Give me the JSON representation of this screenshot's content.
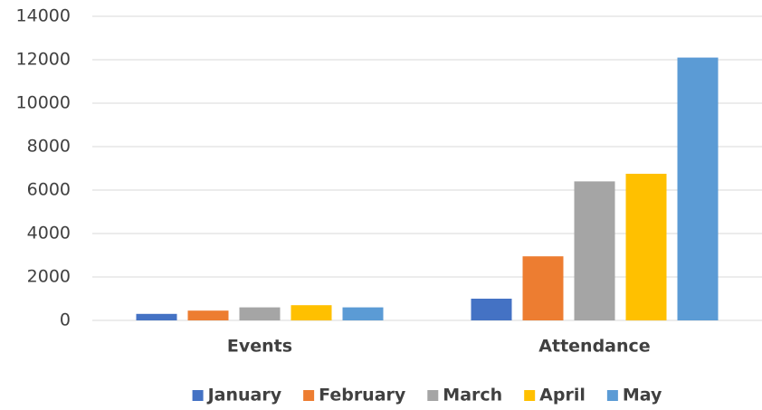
{
  "chart_data": {
    "type": "bar",
    "categories": [
      "Events",
      "Attendance"
    ],
    "series": [
      {
        "name": "January",
        "color": "#4472c4",
        "values": [
          300,
          1000
        ]
      },
      {
        "name": "February",
        "color": "#ed7d31",
        "values": [
          450,
          2950
        ]
      },
      {
        "name": "March",
        "color": "#a5a5a5",
        "values": [
          600,
          6400
        ]
      },
      {
        "name": "April",
        "color": "#ffc000",
        "values": [
          700,
          6750
        ]
      },
      {
        "name": "May",
        "color": "#5b9bd5",
        "values": [
          600,
          12100
        ]
      }
    ],
    "ylim": [
      0,
      14000
    ],
    "yticks": [
      0,
      2000,
      4000,
      6000,
      8000,
      10000,
      12000,
      14000
    ],
    "grid": true,
    "legend": "bottom"
  }
}
